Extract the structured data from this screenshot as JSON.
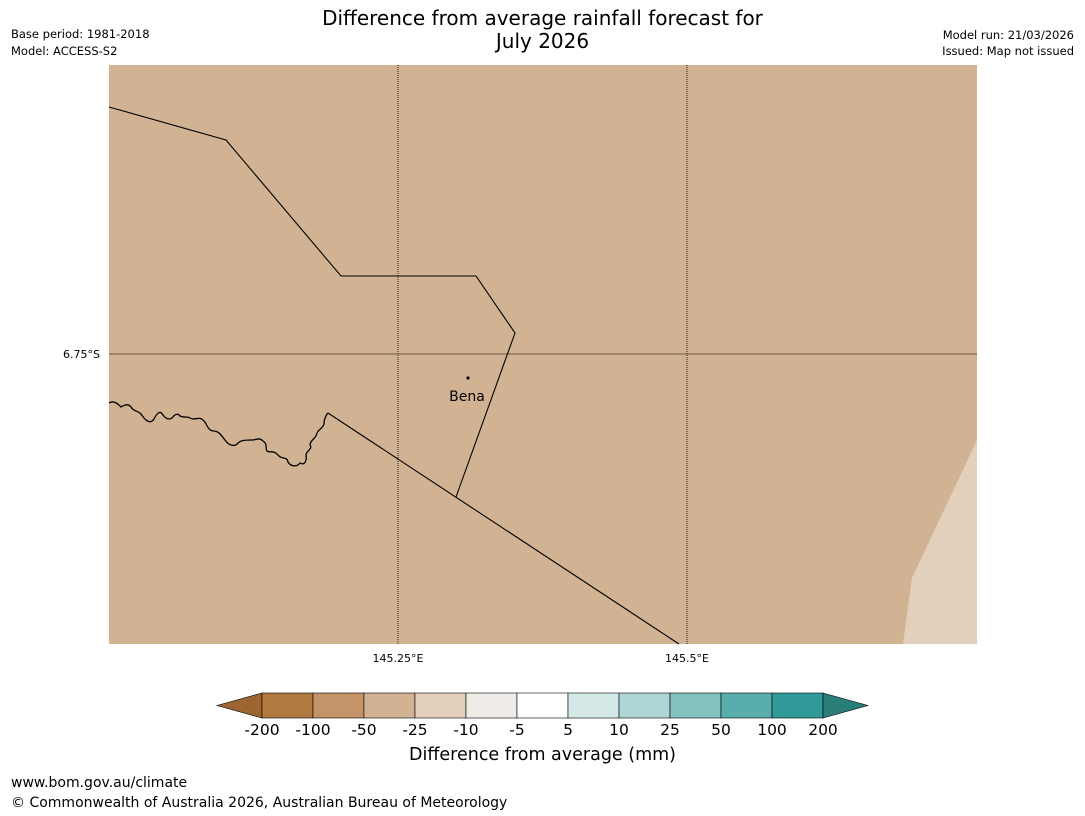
{
  "header": {
    "title_line1": "Difference from average rainfall forecast for",
    "title_line2": "July 2026",
    "base_period": "Base period: 1981-2018",
    "model": "Model: ACCESS-S2",
    "model_run": "Model run: 21/03/2026",
    "issued": "Issued: Map not issued"
  },
  "map": {
    "lat_label": "6.75°S",
    "lon_labels": [
      "145.25°E",
      "145.5°E"
    ],
    "place_label": "Bena",
    "colors": {
      "main_fill": "#d1b394",
      "light_fill": "#e2cfbc",
      "gridline_lat": "#6b5a46",
      "border": "#000000"
    }
  },
  "colorbar": {
    "title": "Difference from average (mm)",
    "tick_labels": [
      "-200",
      "-100",
      "-50",
      "-25",
      "-10",
      "-5",
      "5",
      "10",
      "25",
      "50",
      "100",
      "200"
    ],
    "colors": [
      "#9c6532",
      "#b07a40",
      "#c39468",
      "#d1b394",
      "#e2cfbc",
      "#efebe7",
      "#ffffff",
      "#d5e8e8",
      "#aed6d6",
      "#83c1be",
      "#5aadad",
      "#319a98",
      "#2a7e7a"
    ]
  },
  "footer": {
    "url": "www.bom.gov.au/climate",
    "copyright": "© Commonwealth of Australia 2026, Australian Bureau of Meteorology"
  }
}
